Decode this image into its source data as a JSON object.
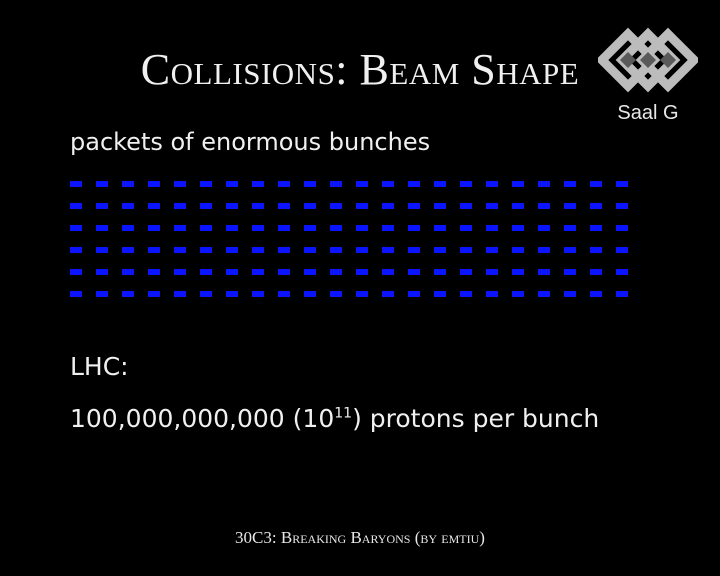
{
  "slide": {
    "title": "Collisions: Beam Shape",
    "subtitle": "packets of enormous bunches",
    "lhc_label": "LHC:",
    "protons_number": "100,000,000,000 (10",
    "protons_exponent": "11",
    "protons_suffix": ") protons per bunch",
    "footer": "30C3: Breaking Baryons (by emtiu)"
  },
  "logo": {
    "icon": "saal-g-logo-icon",
    "label": "Saal G"
  },
  "bunch_grid": {
    "rows": 6,
    "columns": 22,
    "color": "#0a14ff"
  }
}
